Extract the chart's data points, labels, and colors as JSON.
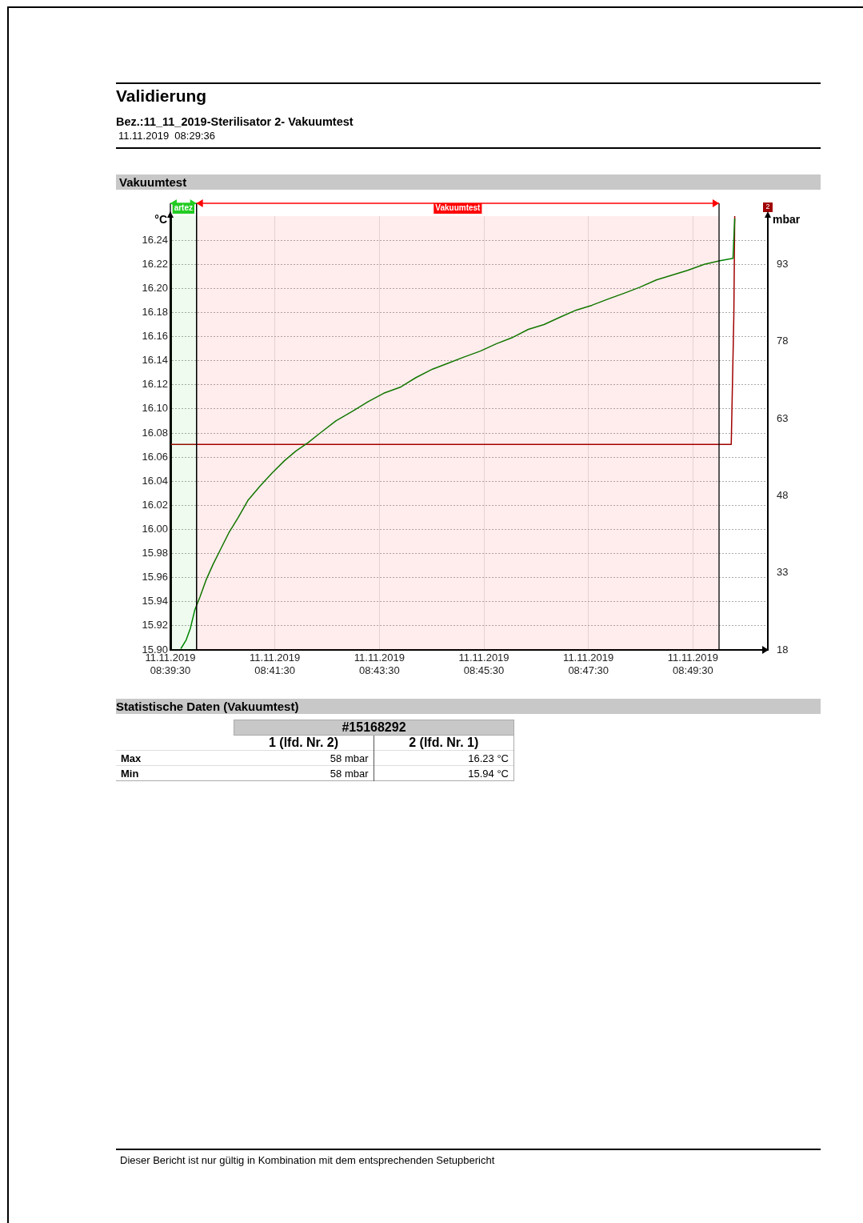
{
  "chart_data": {
    "type": "line",
    "title": "Validierung",
    "subtitle": "Bez.:11_11_2019-Sterilisator 2- Vakuumtest",
    "ylabel": "°C",
    "y2label": "mbar",
    "annotations": [
      "11.11.2019  08:29:36",
      "Vakuumtest",
      "Statistische Daten (Vakuumtest)",
      "#15168292",
      "1 (lfd. Nr. 2)",
      "2 (lfd. Nr. 1)",
      "Max",
      "58 mbar",
      "16.23 °C",
      "Min",
      "58 mbar",
      "15.94 °C",
      "Dieser Bericht ist nur gültig in Kombination mit dem entsprechenden Setupbericht",
      "2"
    ],
    "xlim": [
      "2019-11-11T08:39:30",
      "2019-11-11T08:50:56"
    ],
    "xticks": [
      {
        "value": "2019-11-11T08:39:30",
        "label": "11.11.2019 08:39:30"
      },
      {
        "value": "2019-11-11T08:41:30",
        "label": "11.11.2019 08:41:30"
      },
      {
        "value": "2019-11-11T08:43:30",
        "label": "11.11.2019 08:43:30"
      },
      {
        "value": "2019-11-11T08:45:30",
        "label": "11.11.2019 08:45:30"
      },
      {
        "value": "2019-11-11T08:47:30",
        "label": "11.11.2019 08:47:30"
      },
      {
        "value": "2019-11-11T08:49:30",
        "label": "11.11.2019 08:49:30"
      }
    ],
    "ylim": [
      15.9,
      16.26
    ],
    "yticks": [
      {
        "value": 15.9,
        "label": "15.90"
      },
      15.92,
      15.94,
      15.96,
      15.98,
      {
        "value": 16,
        "label": "16.00"
      },
      16.02,
      16.04,
      16.06,
      16.08,
      {
        "value": 16.1,
        "label": "16.10"
      },
      16.12,
      16.14,
      16.16,
      16.18,
      {
        "value": 16.2,
        "label": "16.20"
      },
      16.22,
      16.24
    ],
    "y2lim": [
      18,
      102.4
    ],
    "y2ticks": [
      18,
      33,
      48,
      63,
      78,
      93
    ],
    "grid": true,
    "marker": "none",
    "line_style": "solid",
    "bands": [
      {
        "axis": "x",
        "from": "2019-11-11T08:39:30",
        "to": "2019-11-11T08:40:00",
        "label": "artez",
        "color": "#22cc22"
      },
      {
        "axis": "x",
        "from": "2019-11-11T08:40:00",
        "to": "2019-11-11T08:50:00",
        "label": "Vakuumtest",
        "color": "#ff0000"
      }
    ],
    "series": [
      {
        "axis": "y",
        "color": "#008000",
        "x": [
          "2019-11-11T08:39:42",
          "2019-11-11T08:39:48",
          "2019-11-11T08:39:53",
          "2019-11-11T08:39:58",
          "2019-11-11T08:40:04",
          "2019-11-11T08:40:11",
          "2019-11-11T08:40:19",
          "2019-11-11T08:40:28",
          "2019-11-11T08:40:37",
          "2019-11-11T08:40:48",
          "2019-11-11T08:40:59",
          "2019-11-11T08:41:13",
          "2019-11-11T08:41:27",
          "2019-11-11T08:41:41",
          "2019-11-11T08:41:54",
          "2019-11-11T08:42:08",
          "2019-11-11T08:42:22",
          "2019-11-11T08:42:40",
          "2019-11-11T08:42:59",
          "2019-11-11T08:43:17",
          "2019-11-11T08:43:35",
          "2019-11-11T08:43:54",
          "2019-11-11T08:44:12",
          "2019-11-11T08:44:31",
          "2019-11-11T08:44:49",
          "2019-11-11T08:45:07",
          "2019-11-11T08:45:26",
          "2019-11-11T08:45:44",
          "2019-11-11T08:46:02",
          "2019-11-11T08:46:21",
          "2019-11-11T08:46:39",
          "2019-11-11T08:46:57",
          "2019-11-11T08:47:16",
          "2019-11-11T08:47:34",
          "2019-11-11T08:47:52",
          "2019-11-11T08:48:11",
          "2019-11-11T08:48:29",
          "2019-11-11T08:48:48",
          "2019-11-11T08:49:06",
          "2019-11-11T08:49:24",
          "2019-11-11T08:49:43",
          "2019-11-11T08:50:01",
          "2019-11-11T08:50:16",
          "2019-11-11T08:50:18"
        ],
        "values": [
          15.901,
          15.908,
          15.918,
          15.933,
          15.944,
          15.958,
          15.971,
          15.984,
          15.997,
          16.01,
          16.024,
          16.036,
          16.047,
          16.057,
          16.065,
          16.072,
          16.08,
          16.09,
          16.098,
          16.106,
          16.113,
          16.118,
          16.126,
          16.133,
          16.138,
          16.143,
          16.148,
          16.154,
          16.159,
          16.166,
          16.17,
          16.176,
          16.182,
          16.186,
          16.191,
          16.196,
          16.201,
          16.207,
          16.211,
          16.215,
          16.22,
          16.223,
          16.225,
          16.258
        ]
      },
      {
        "axis": "y2",
        "color": "#a00000",
        "x": [
          "2019-11-11T08:39:30",
          "2019-11-11T08:50:14",
          "2019-11-11T08:50:17",
          "2019-11-11T08:50:18"
        ],
        "values": [
          58,
          58,
          83.3,
          102.4
        ]
      }
    ]
  }
}
